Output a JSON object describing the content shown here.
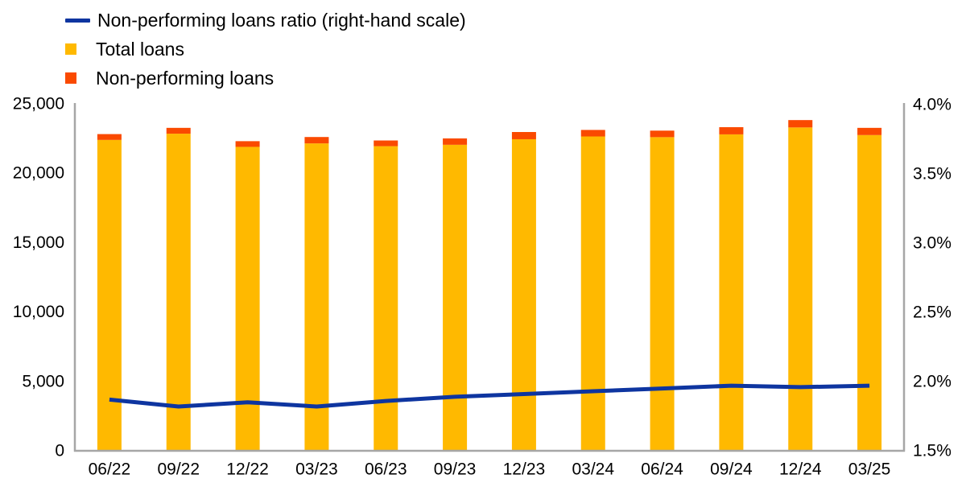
{
  "legend": {
    "items": [
      {
        "label": "Non-performing loans ratio (right-hand scale)",
        "swatch": "line",
        "color": "#0E35A0"
      },
      {
        "label": "Total loans",
        "swatch": "square",
        "color": "#FFB900"
      },
      {
        "label": "Non-performing loans",
        "swatch": "square",
        "color": "#FA4A00"
      }
    ]
  },
  "colors": {
    "total_loans_bar": "#FFB900",
    "non_performing_bar": "#FA4A00",
    "ratio_line": "#0E35A0",
    "axis_line": "#A6A6A6",
    "tick_text": "#000000"
  },
  "chart_data": {
    "type": "bar",
    "subtype": "stacked-bars-with-line",
    "title": "",
    "categories": [
      "06/22",
      "09/22",
      "12/22",
      "03/23",
      "06/23",
      "09/23",
      "12/23",
      "03/24",
      "06/24",
      "09/24",
      "12/24",
      "03/25"
    ],
    "series": [
      {
        "name": "Total loans",
        "type": "bar",
        "stack": "loans",
        "axis": "left",
        "values": [
          22400,
          22850,
          21900,
          22150,
          21950,
          22050,
          22450,
          22650,
          22600,
          22800,
          23300,
          22750
        ]
      },
      {
        "name": "Non-performing loans",
        "type": "bar",
        "stack": "loans",
        "axis": "left",
        "values": [
          420,
          420,
          410,
          460,
          410,
          460,
          520,
          470,
          470,
          520,
          530,
          520
        ]
      },
      {
        "name": "Non-performing loans ratio (right-hand scale)",
        "type": "line",
        "axis": "right",
        "values": [
          1.87,
          1.82,
          1.85,
          1.82,
          1.86,
          1.89,
          1.91,
          1.93,
          1.95,
          1.97,
          1.96,
          1.97
        ]
      }
    ],
    "left_axis": {
      "min": 0,
      "max": 25000,
      "ticks": [
        {
          "label": "0",
          "value": 0
        },
        {
          "label": "5,000",
          "value": 5000
        },
        {
          "label": "10,000",
          "value": 10000
        },
        {
          "label": "15,000",
          "value": 15000
        },
        {
          "label": "20,000",
          "value": 20000
        },
        {
          "label": "25,000",
          "value": 25000
        }
      ]
    },
    "right_axis": {
      "min": 1.5,
      "max": 4.0,
      "ticks": [
        {
          "label": "1.5%",
          "value": 1.5
        },
        {
          "label": "2.0%",
          "value": 2.0
        },
        {
          "label": "2.5%",
          "value": 2.5
        },
        {
          "label": "3.0%",
          "value": 3.0
        },
        {
          "label": "3.5%",
          "value": 3.5
        },
        {
          "label": "4.0%",
          "value": 4.0
        }
      ]
    },
    "grid": false,
    "legend_position": "top-left"
  }
}
